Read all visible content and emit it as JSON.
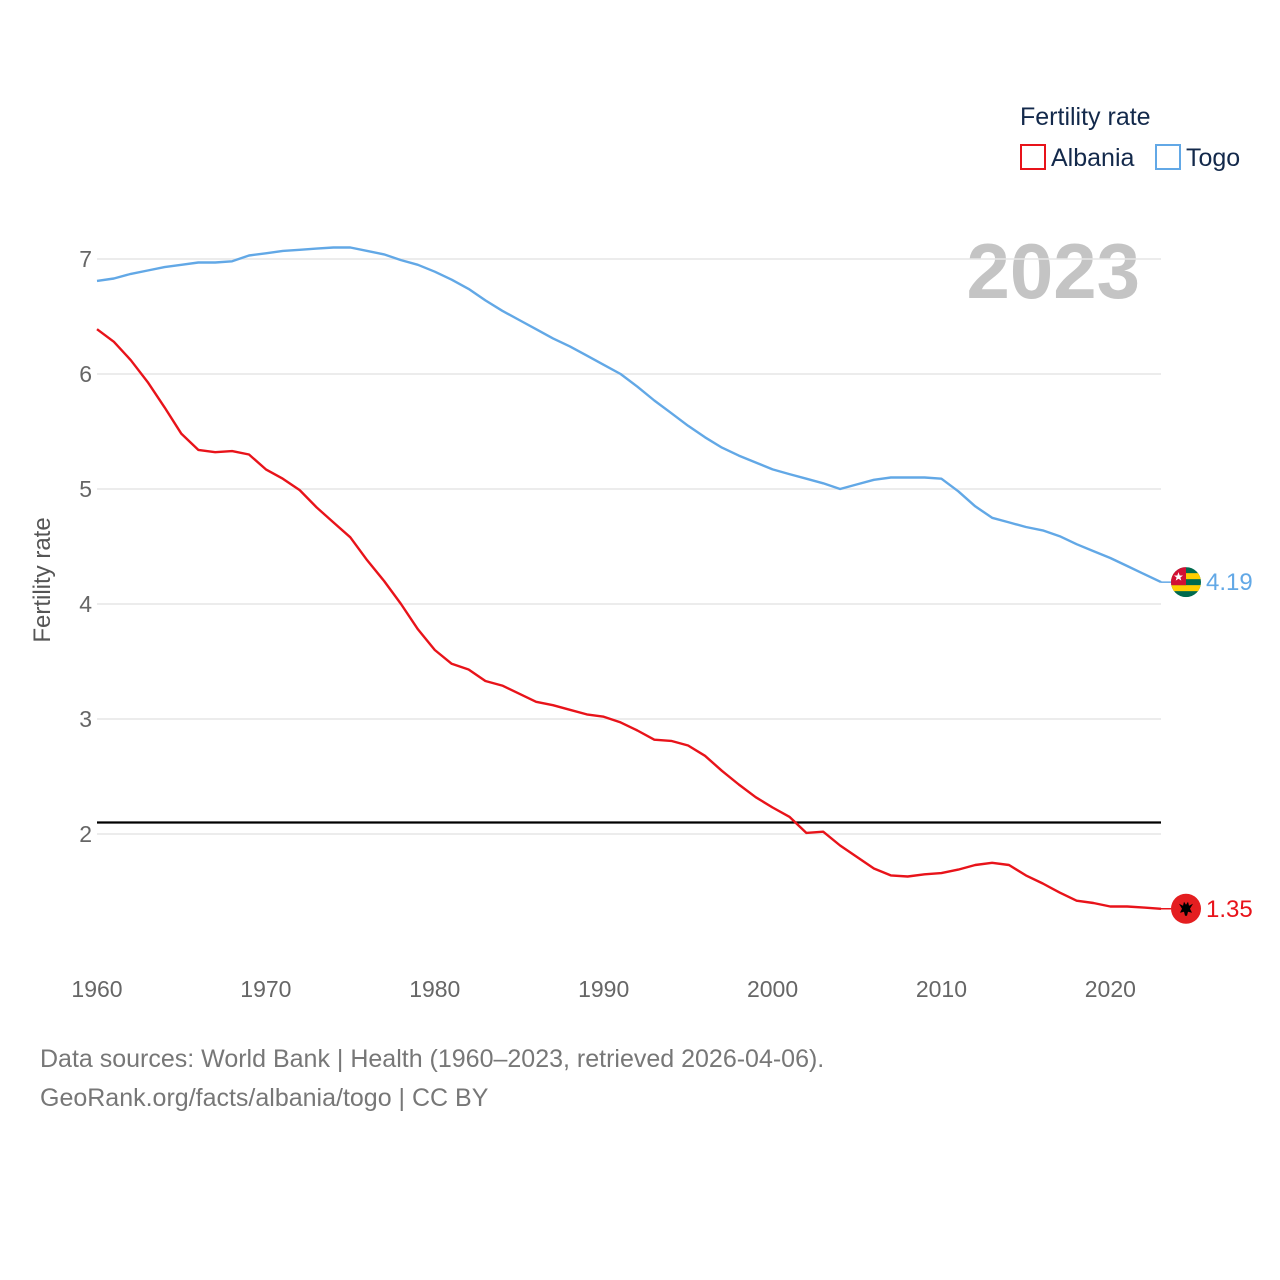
{
  "chart_data": {
    "type": "line",
    "title": "",
    "year_label": "2023",
    "xlabel": "",
    "ylabel": "Fertility rate",
    "legend_title": "Fertility rate",
    "legend_position": "top-right",
    "xlim": [
      1960,
      2023
    ],
    "ylim": [
      1.0,
      7.3
    ],
    "x_ticks": [
      "1960",
      "1970",
      "1980",
      "1990",
      "2000",
      "2010",
      "2020"
    ],
    "y_ticks": [
      "2",
      "3",
      "4",
      "5",
      "6",
      "7"
    ],
    "grid": true,
    "reference_line": {
      "y": 2.1,
      "color": "#000000"
    },
    "series": [
      {
        "name": "Albania",
        "color": "#e8131a",
        "end_label": "1.35",
        "flag": "albania-flag-icon",
        "x": [
          1960,
          1961,
          1962,
          1963,
          1964,
          1965,
          1966,
          1967,
          1968,
          1969,
          1970,
          1971,
          1972,
          1973,
          1974,
          1975,
          1976,
          1977,
          1978,
          1979,
          1980,
          1981,
          1982,
          1983,
          1984,
          1985,
          1986,
          1987,
          1988,
          1989,
          1990,
          1991,
          1992,
          1993,
          1994,
          1995,
          1996,
          1997,
          1998,
          1999,
          2000,
          2001,
          2002,
          2003,
          2004,
          2005,
          2006,
          2007,
          2008,
          2009,
          2010,
          2011,
          2012,
          2013,
          2014,
          2015,
          2016,
          2017,
          2018,
          2019,
          2020,
          2021,
          2022,
          2023
        ],
        "values": [
          6.39,
          6.28,
          6.12,
          5.93,
          5.71,
          5.48,
          5.34,
          5.32,
          5.33,
          5.3,
          5.17,
          5.09,
          4.99,
          4.84,
          4.71,
          4.58,
          4.38,
          4.2,
          4.0,
          3.78,
          3.6,
          3.48,
          3.43,
          3.33,
          3.29,
          3.22,
          3.15,
          3.12,
          3.08,
          3.04,
          3.02,
          2.97,
          2.9,
          2.82,
          2.81,
          2.77,
          2.68,
          2.55,
          2.43,
          2.32,
          2.23,
          2.15,
          2.01,
          2.02,
          1.9,
          1.8,
          1.7,
          1.64,
          1.63,
          1.65,
          1.66,
          1.69,
          1.73,
          1.75,
          1.73,
          1.64,
          1.57,
          1.49,
          1.42,
          1.4,
          1.37,
          1.37,
          1.36,
          1.35
        ]
      },
      {
        "name": "Togo",
        "color": "#62a8e6",
        "end_label": "4.19",
        "flag": "togo-flag-icon",
        "x": [
          1960,
          1961,
          1962,
          1963,
          1964,
          1965,
          1966,
          1967,
          1968,
          1969,
          1970,
          1971,
          1972,
          1973,
          1974,
          1975,
          1976,
          1977,
          1978,
          1979,
          1980,
          1981,
          1982,
          1983,
          1984,
          1985,
          1986,
          1987,
          1988,
          1989,
          1990,
          1991,
          1992,
          1993,
          1994,
          1995,
          1996,
          1997,
          1998,
          1999,
          2000,
          2001,
          2002,
          2003,
          2004,
          2005,
          2006,
          2007,
          2008,
          2009,
          2010,
          2011,
          2012,
          2013,
          2014,
          2015,
          2016,
          2017,
          2018,
          2019,
          2020,
          2021,
          2022,
          2023
        ],
        "values": [
          6.81,
          6.83,
          6.87,
          6.9,
          6.93,
          6.95,
          6.97,
          6.97,
          6.98,
          7.03,
          7.05,
          7.07,
          7.08,
          7.09,
          7.1,
          7.1,
          7.07,
          7.04,
          6.99,
          6.95,
          6.89,
          6.82,
          6.74,
          6.64,
          6.55,
          6.47,
          6.39,
          6.31,
          6.24,
          6.16,
          6.08,
          6.0,
          5.89,
          5.77,
          5.66,
          5.55,
          5.45,
          5.36,
          5.29,
          5.23,
          5.17,
          5.13,
          5.09,
          5.05,
          5.0,
          5.04,
          5.08,
          5.1,
          5.1,
          5.1,
          5.09,
          4.98,
          4.85,
          4.75,
          4.71,
          4.67,
          4.64,
          4.59,
          4.52,
          4.46,
          4.4,
          4.33,
          4.26,
          4.19
        ]
      }
    ]
  },
  "footer": {
    "sources": "Data sources: World Bank | Health (1960–2023, retrieved 2026-04-06).",
    "credit": "GeoRank.org/facts/albania/togo | CC BY"
  }
}
